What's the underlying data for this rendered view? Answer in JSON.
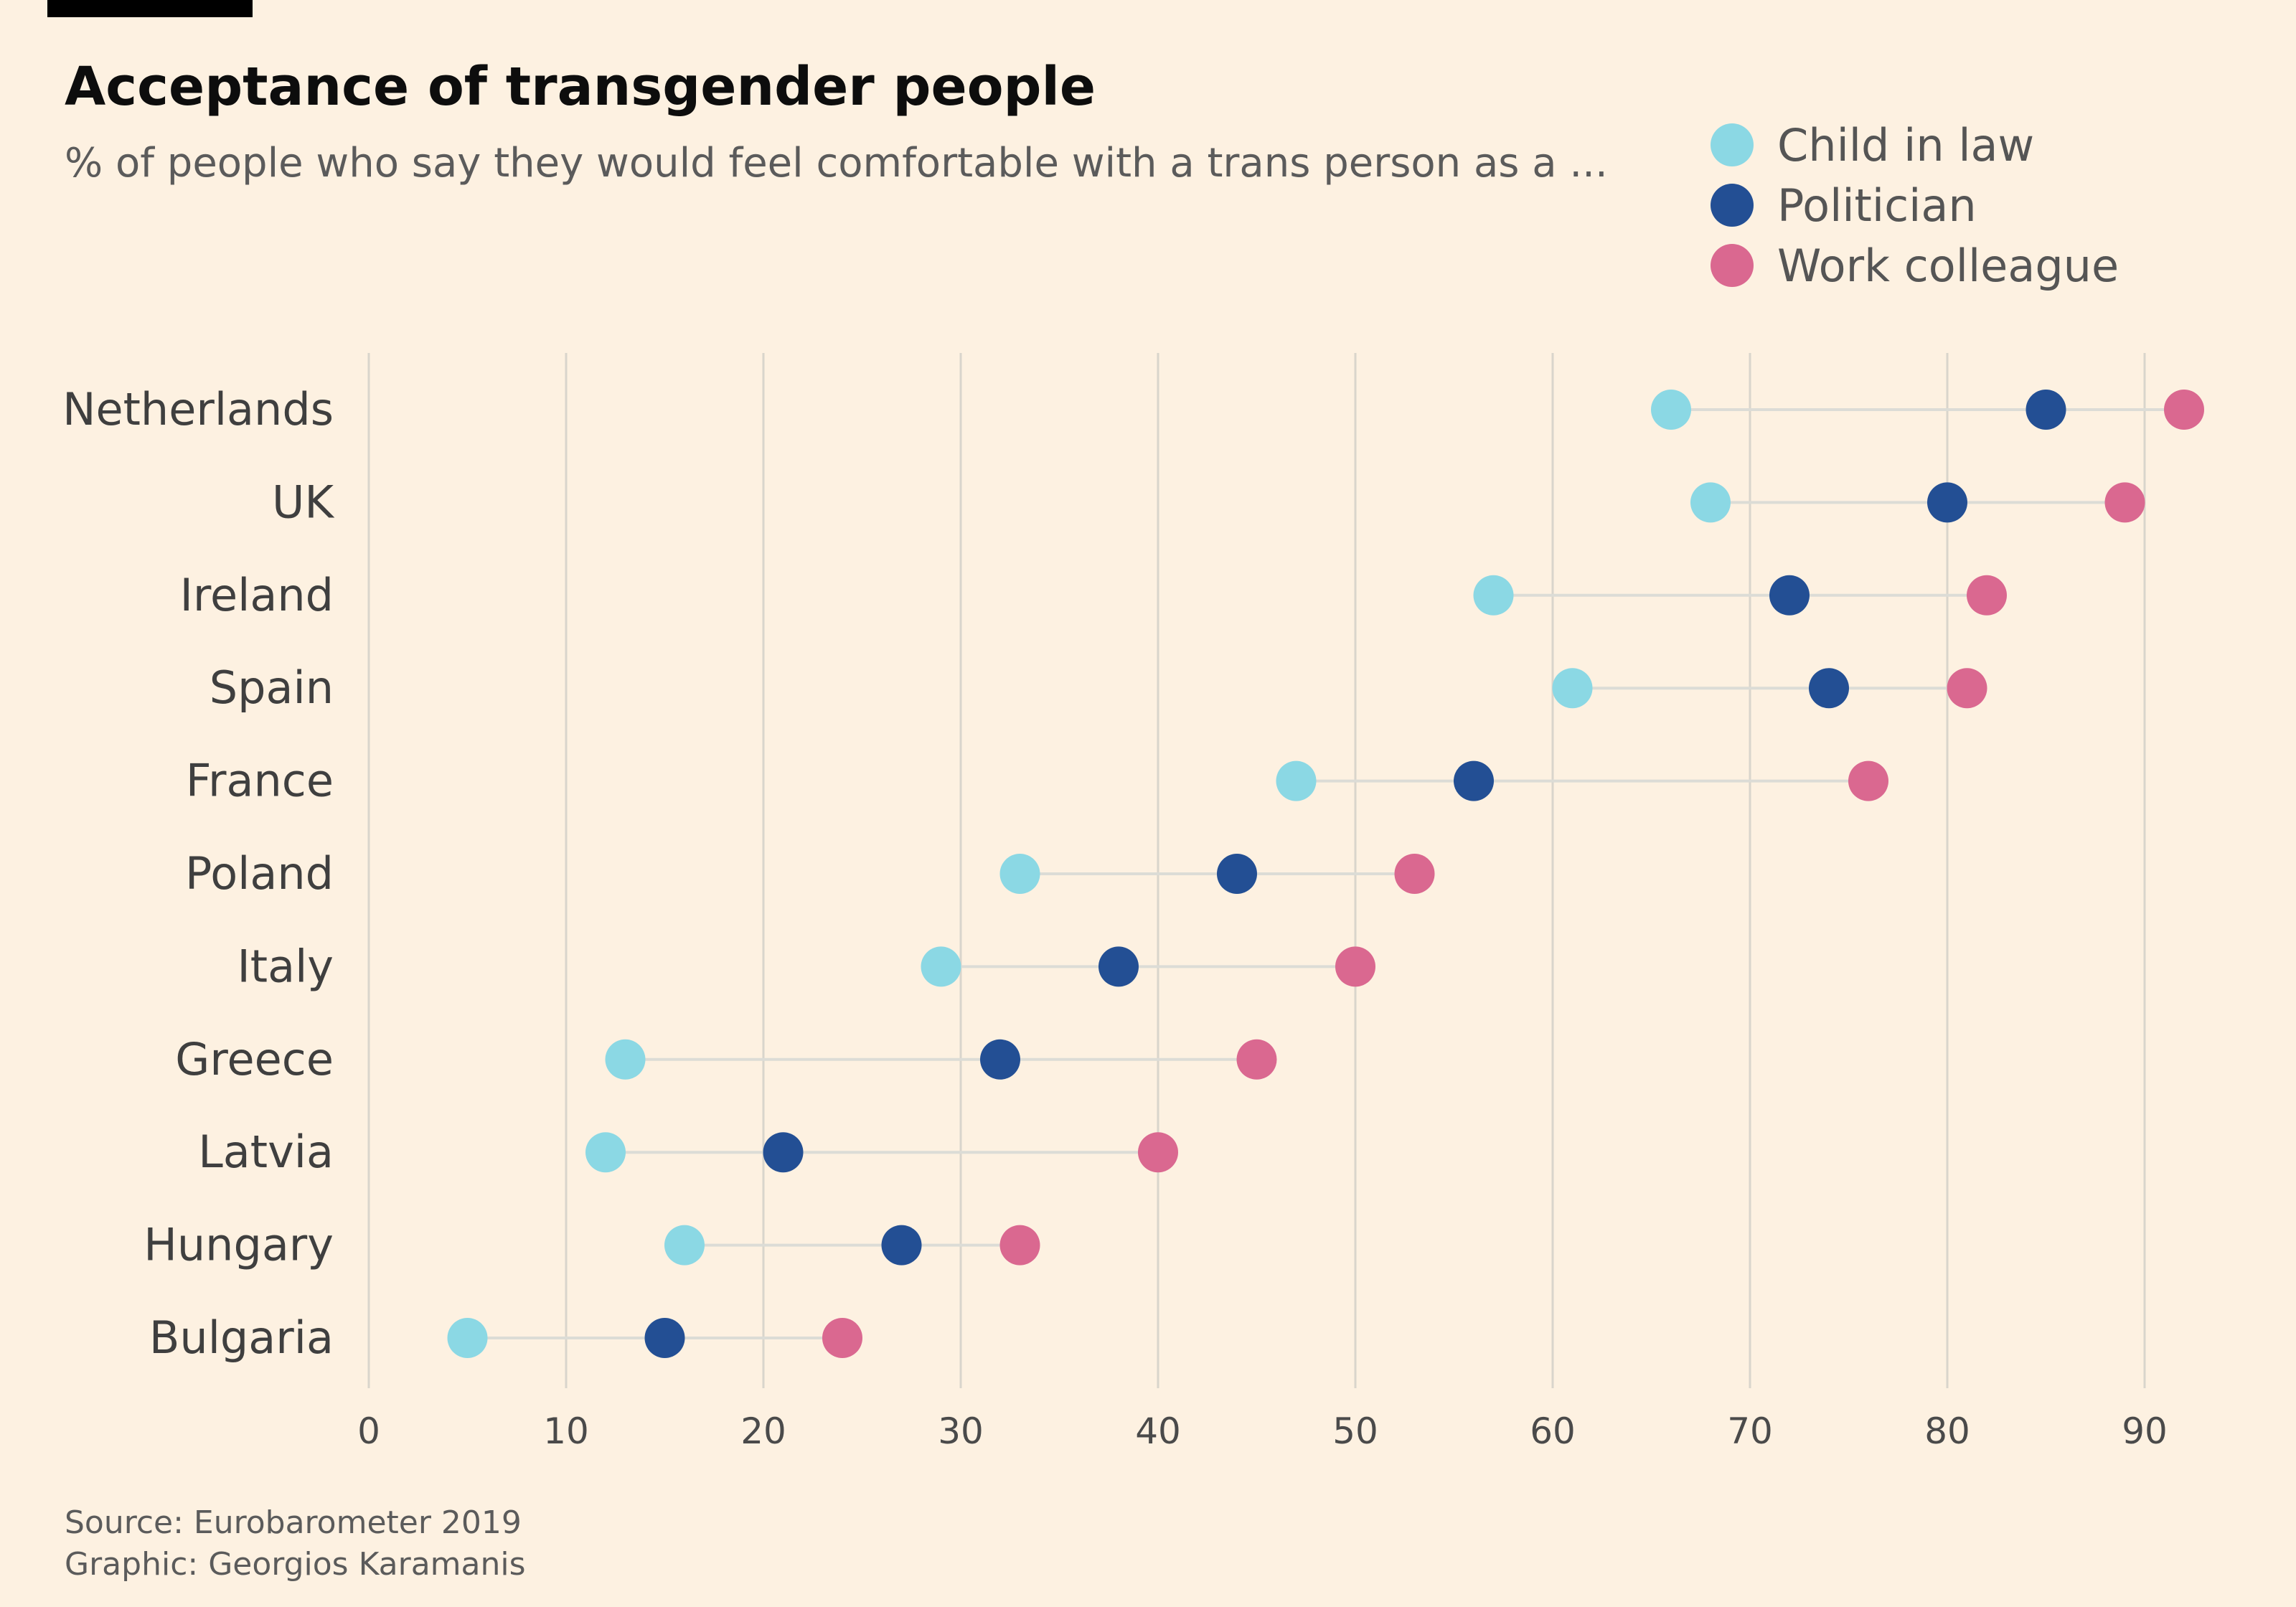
{
  "header": {
    "title": "Acceptance of transgender people",
    "subtitle": "% of people who say they would feel comfortable with a trans person as a ..."
  },
  "footer": {
    "source": "Source: Eurobarometer 2019",
    "graphic": "Graphic: Georgios Karamanis"
  },
  "colors": {
    "background": "#FDF1E1",
    "corner_bar": "#000000",
    "Child in law": "#8BD8E4",
    "Politician": "#234F94",
    "Work colleague": "#DA6890"
  },
  "chart_data": {
    "type": "scatter",
    "title": "Acceptance of transgender people",
    "subtitle": "% of people who say they would feel comfortable with a trans person as a ...",
    "categories": [
      "Netherlands",
      "UK",
      "Ireland",
      "Spain",
      "France",
      "Poland",
      "Italy",
      "Greece",
      "Latvia",
      "Hungary",
      "Bulgaria"
    ],
    "series": [
      {
        "name": "Child in law",
        "values": [
          66,
          68,
          57,
          61,
          47,
          33,
          29,
          13,
          12,
          16,
          5
        ]
      },
      {
        "name": "Politician",
        "values": [
          85,
          80,
          72,
          74,
          56,
          44,
          38,
          32,
          21,
          27,
          15
        ]
      },
      {
        "name": "Work colleague",
        "values": [
          92,
          89,
          82,
          81,
          76,
          53,
          50,
          45,
          40,
          33,
          24
        ]
      }
    ],
    "xticks": [
      0,
      10,
      20,
      30,
      40,
      50,
      60,
      70,
      80,
      90
    ],
    "xlim": [
      0,
      92
    ],
    "grid": "vertical",
    "legend": "top-right"
  }
}
